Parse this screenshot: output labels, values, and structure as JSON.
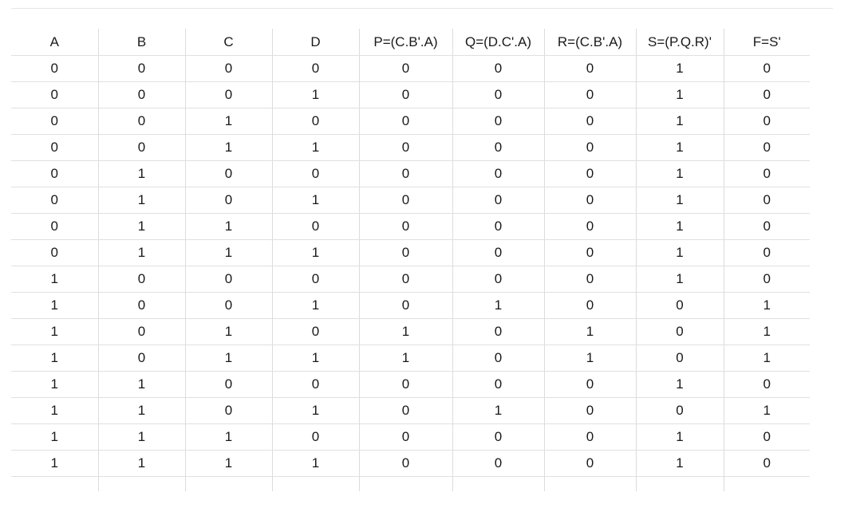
{
  "table": {
    "headers": [
      "A",
      "B",
      "C",
      "D",
      "P=(C.B'.A)",
      "Q=(D.C'.A)",
      "R=(C.B'.A)",
      "S=(P.Q.R)'",
      "F=S'"
    ],
    "rows": [
      [
        "0",
        "0",
        "0",
        "0",
        "0",
        "0",
        "0",
        "1",
        "0"
      ],
      [
        "0",
        "0",
        "0",
        "1",
        "0",
        "0",
        "0",
        "1",
        "0"
      ],
      [
        "0",
        "0",
        "1",
        "0",
        "0",
        "0",
        "0",
        "1",
        "0"
      ],
      [
        "0",
        "0",
        "1",
        "1",
        "0",
        "0",
        "0",
        "1",
        "0"
      ],
      [
        "0",
        "1",
        "0",
        "0",
        "0",
        "0",
        "0",
        "1",
        "0"
      ],
      [
        "0",
        "1",
        "0",
        "1",
        "0",
        "0",
        "0",
        "1",
        "0"
      ],
      [
        "0",
        "1",
        "1",
        "0",
        "0",
        "0",
        "0",
        "1",
        "0"
      ],
      [
        "0",
        "1",
        "1",
        "1",
        "0",
        "0",
        "0",
        "1",
        "0"
      ],
      [
        "1",
        "0",
        "0",
        "0",
        "0",
        "0",
        "0",
        "1",
        "0"
      ],
      [
        "1",
        "0",
        "0",
        "1",
        "0",
        "1",
        "0",
        "0",
        "1"
      ],
      [
        "1",
        "0",
        "1",
        "0",
        "1",
        "0",
        "1",
        "0",
        "1"
      ],
      [
        "1",
        "0",
        "1",
        "1",
        "1",
        "0",
        "1",
        "0",
        "1"
      ],
      [
        "1",
        "1",
        "0",
        "0",
        "0",
        "0",
        "0",
        "1",
        "0"
      ],
      [
        "1",
        "1",
        "0",
        "1",
        "0",
        "1",
        "0",
        "0",
        "1"
      ],
      [
        "1",
        "1",
        "1",
        "0",
        "0",
        "0",
        "0",
        "1",
        "0"
      ],
      [
        "1",
        "1",
        "1",
        "1",
        "0",
        "0",
        "0",
        "1",
        "0"
      ]
    ]
  }
}
